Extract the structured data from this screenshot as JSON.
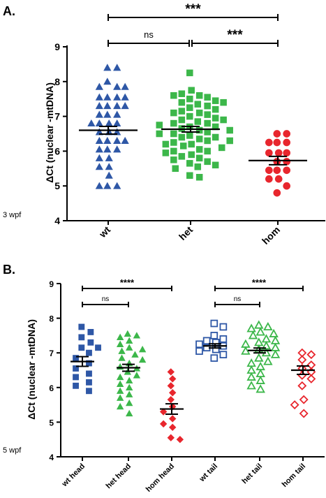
{
  "chart_data": [
    {
      "type": "scatter",
      "panel_label": "A.",
      "ylabel": "ΔCt (nuclear -mtDNA)",
      "ylim": [
        4,
        9
      ],
      "yticks": [
        4,
        5,
        6,
        7,
        8,
        9
      ],
      "note": "3 wpf",
      "categories": [
        "wt",
        "het",
        "hom"
      ],
      "series": [
        {
          "category": "wt",
          "marker": "triangle-filled",
          "color": "#2e57a6",
          "mean": 6.6,
          "sem": 0.11,
          "values": [
            8.4,
            8.4,
            8.0,
            7.85,
            7.85,
            7.85,
            7.55,
            7.55,
            7.55,
            7.55,
            7.3,
            7.3,
            7.3,
            7.3,
            7.05,
            7.05,
            7.05,
            6.8,
            6.8,
            6.8,
            6.8,
            6.55,
            6.55,
            6.55,
            6.3,
            6.3,
            6.3,
            6.3,
            6.05,
            6.05,
            6.05,
            5.8,
            5.8,
            5.55,
            5.55,
            5.3,
            5.0,
            5.0,
            5.0
          ]
        },
        {
          "category": "het",
          "marker": "square-filled",
          "color": "#3cb74a",
          "mean": 6.63,
          "sem": 0.08,
          "values": [
            8.25,
            7.75,
            7.65,
            7.6,
            7.6,
            7.55,
            7.5,
            7.45,
            7.4,
            7.4,
            7.35,
            7.3,
            7.25,
            7.2,
            7.15,
            7.1,
            7.1,
            7.05,
            7.0,
            6.95,
            6.9,
            6.9,
            6.85,
            6.8,
            6.8,
            6.75,
            6.7,
            6.7,
            6.65,
            6.6,
            6.6,
            6.55,
            6.5,
            6.5,
            6.45,
            6.4,
            6.4,
            6.35,
            6.3,
            6.3,
            6.25,
            6.2,
            6.2,
            6.15,
            6.1,
            6.05,
            6.0,
            6.0,
            5.95,
            5.9,
            5.85,
            5.8,
            5.75,
            5.7,
            5.65,
            5.6,
            5.55,
            5.5,
            5.3,
            5.25
          ]
        },
        {
          "category": "hom",
          "marker": "circle-filled",
          "color": "#e8262d",
          "mean": 5.73,
          "sem": 0.12,
          "values": [
            6.5,
            6.5,
            6.25,
            6.25,
            6.25,
            5.95,
            5.95,
            5.95,
            5.7,
            5.7,
            5.45,
            5.45,
            5.45,
            5.2,
            5.2,
            5.0,
            4.8
          ]
        }
      ],
      "comparisons": [
        {
          "from": "wt",
          "to": "hom",
          "label": "***"
        },
        {
          "from": "wt",
          "to": "het",
          "label": "ns"
        },
        {
          "from": "het",
          "to": "hom",
          "label": "***"
        }
      ]
    },
    {
      "type": "scatter",
      "panel_label": "B.",
      "ylabel": "ΔCt (nuclear -mtDNA)",
      "ylim": [
        4,
        9
      ],
      "yticks": [
        4,
        5,
        6,
        7,
        8,
        9
      ],
      "note": "5 wpf",
      "categories": [
        "wt head",
        "het head",
        "hom head",
        "wt tail",
        "het tail",
        "hom tail"
      ],
      "series": [
        {
          "category": "wt head",
          "marker": "square-filled",
          "color": "#2e57a6",
          "mean": 6.75,
          "sem": 0.14,
          "values": [
            7.75,
            7.6,
            7.45,
            7.3,
            7.15,
            7.15,
            7.0,
            6.85,
            6.7,
            6.55,
            6.4,
            6.3,
            6.15,
            6.05,
            5.9
          ]
        },
        {
          "category": "het head",
          "marker": "triangle-filled",
          "color": "#3cb74a",
          "mean": 6.57,
          "sem": 0.1,
          "values": [
            7.55,
            7.5,
            7.45,
            7.35,
            7.25,
            7.15,
            7.1,
            7.05,
            6.95,
            6.85,
            6.8,
            6.7,
            6.6,
            6.55,
            6.45,
            6.35,
            6.3,
            6.2,
            6.1,
            6.0,
            5.9,
            5.8,
            5.7,
            5.55,
            5.45,
            5.25
          ]
        },
        {
          "category": "hom head",
          "marker": "diamond-filled",
          "color": "#e8262d",
          "mean": 5.38,
          "sem": 0.15,
          "values": [
            6.45,
            6.25,
            6.05,
            5.85,
            5.65,
            5.45,
            5.3,
            5.1,
            4.95,
            4.85,
            4.55,
            4.5
          ]
        },
        {
          "category": "wt tail",
          "marker": "square-open",
          "color": "#2e57a6",
          "mean": 7.2,
          "sem": 0.06,
          "values": [
            7.85,
            7.75,
            7.5,
            7.4,
            7.35,
            7.3,
            7.25,
            7.2,
            7.15,
            7.1,
            7.05,
            6.95,
            6.85
          ]
        },
        {
          "category": "het tail",
          "marker": "triangle-open",
          "color": "#3cb74a",
          "mean": 7.07,
          "sem": 0.07,
          "values": [
            7.8,
            7.75,
            7.7,
            7.6,
            7.55,
            7.5,
            7.4,
            7.35,
            7.3,
            7.25,
            7.2,
            7.15,
            7.1,
            7.05,
            7.0,
            6.95,
            6.85,
            6.75,
            6.7,
            6.6,
            6.5,
            6.4,
            6.3,
            6.2,
            6.05,
            5.95
          ]
        },
        {
          "category": "hom tail",
          "marker": "diamond-open",
          "color": "#e8262d",
          "mean": 6.5,
          "sem": 0.12,
          "values": [
            7.0,
            6.95,
            6.8,
            6.65,
            6.55,
            6.45,
            6.35,
            6.25,
            6.05,
            5.65,
            5.5,
            5.25
          ]
        }
      ],
      "comparisons": [
        {
          "from": "wt head",
          "to": "hom head",
          "label": "****"
        },
        {
          "from": "wt head",
          "to": "het head",
          "label": "ns"
        },
        {
          "from": "wt tail",
          "to": "hom tail",
          "label": "****"
        },
        {
          "from": "wt tail",
          "to": "het tail",
          "label": "ns"
        }
      ]
    }
  ]
}
